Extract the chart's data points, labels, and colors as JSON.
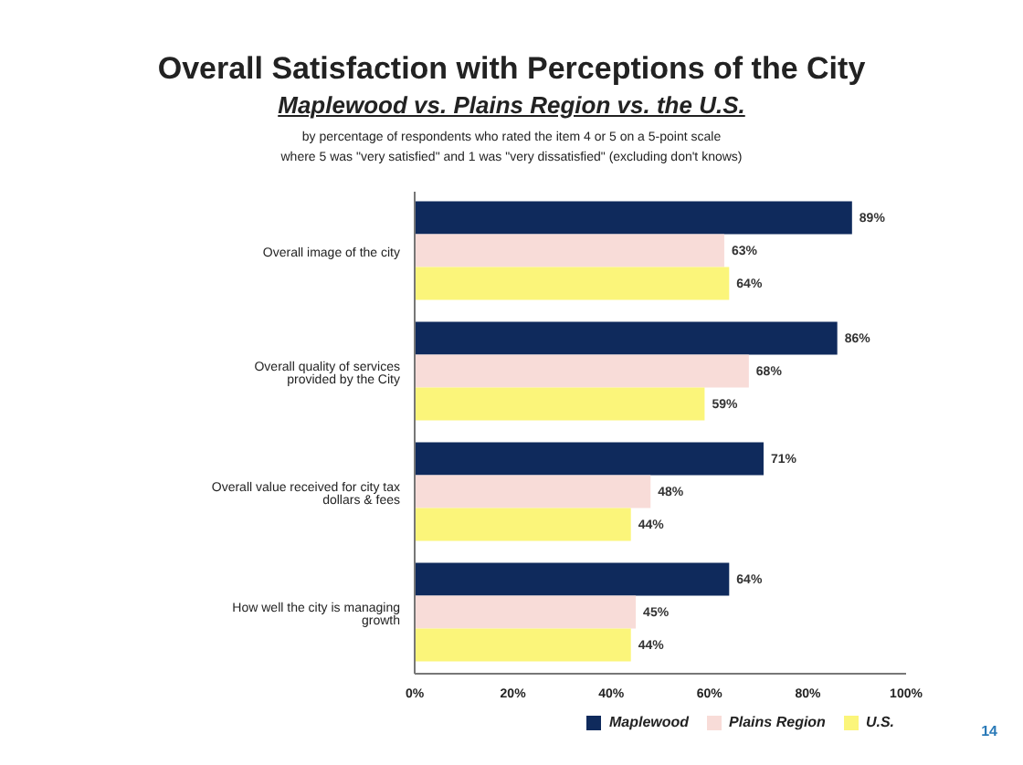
{
  "chart_data": {
    "type": "bar",
    "orientation": "horizontal",
    "title": "Overall Satisfaction with Perceptions of the City",
    "subtitle": "Maplewood vs. Plains Region vs. the U.S.",
    "annotations": [
      "by percentage of respondents who rated the item 4 or 5 on a 5-point scale",
      "where 5 was \"very satisfied\" and 1 was \"very dissatisfied\" (excluding don't knows)",
      "14"
    ],
    "categories": [
      "Overall image of the city",
      "Overall quality of services provided by the City",
      "Overall value received for city tax dollars & fees",
      "How well the city is managing growth"
    ],
    "series": [
      {
        "name": "Maplewood",
        "color": "#0f2a5c",
        "values": [
          89,
          86,
          71,
          64
        ],
        "value_labels": [
          "89%",
          "86%",
          "71%",
          "64%"
        ]
      },
      {
        "name": "Plains Region",
        "color": "#f8dcd8",
        "values": [
          63,
          68,
          48,
          45
        ],
        "value_labels": [
          "63%",
          "68%",
          "48%",
          "45%"
        ]
      },
      {
        "name": "U.S.",
        "color": "#fbf57a",
        "values": [
          64,
          59,
          44,
          44
        ],
        "value_labels": [
          "64%",
          "59%",
          "44%",
          "44%"
        ]
      }
    ],
    "xlim": [
      0,
      100
    ],
    "xticks": [
      {
        "value": 0,
        "label": "0%"
      },
      {
        "value": 20,
        "label": "20%"
      },
      {
        "value": 40,
        "label": "40%"
      },
      {
        "value": 60,
        "label": "60%"
      },
      {
        "value": 80,
        "label": "80%"
      },
      {
        "value": 100,
        "label": "100%"
      }
    ],
    "grid": false,
    "legend": "bottom"
  }
}
